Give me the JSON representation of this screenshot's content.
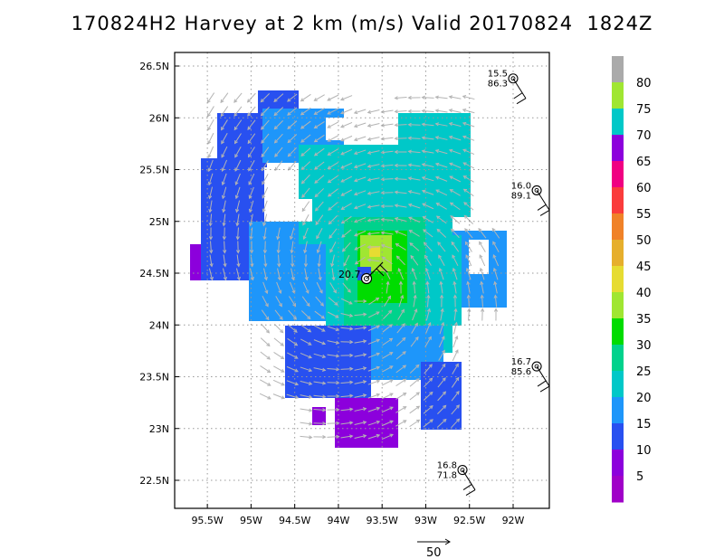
{
  "title": "170824H2 Harvey at 2 km (m/s) Valid 20170824  1824Z",
  "lat_ticks": [
    "26.5N",
    "26N",
    "25.5N",
    "25N",
    "24.5N",
    "24N",
    "23.5N",
    "23N",
    "22.5N"
  ],
  "lon_ticks": [
    "95.5W",
    "95W",
    "94.5W",
    "94W",
    "93.5W",
    "93W",
    "92.5W",
    "92W"
  ],
  "colorbar": {
    "labels": [
      "80",
      "75",
      "70",
      "65",
      "60",
      "55",
      "50",
      "45",
      "40",
      "35",
      "30",
      "25",
      "20",
      "15",
      "10",
      "5"
    ],
    "colors": [
      "#aaaaaa",
      "#a0e632",
      "#00c8c8",
      "#8c00dc",
      "#f00082",
      "#fa3c3c",
      "#f08228",
      "#e6af2d",
      "#e6dc32",
      "#a0e632",
      "#00dc00",
      "#00d28c",
      "#00c8c8",
      "#1e96fa",
      "#2850f0",
      "#8c00dc",
      "#a000c8"
    ]
  },
  "reference_vector": {
    "label": "50"
  },
  "storm_center": {
    "label": "20.7",
    "lon": -93.7,
    "lat": 24.45
  },
  "obs_stations": [
    {
      "value_top": "15.5",
      "value_bottom": "86.3",
      "lon": -92.0,
      "lat": 26.38
    },
    {
      "value_top": "16.0",
      "value_bottom": "89.1",
      "lon": -91.73,
      "lat": 25.3
    },
    {
      "value_top": "16.7",
      "value_bottom": "85.6",
      "lon": -91.73,
      "lat": 23.6
    },
    {
      "value_top": "16.8",
      "value_bottom": "71.8",
      "lon": -92.58,
      "lat": 22.6
    }
  ],
  "colors": {
    "frame": "#000000",
    "grid": "#999999",
    "wind_arrow": "#b4b4b4"
  }
}
